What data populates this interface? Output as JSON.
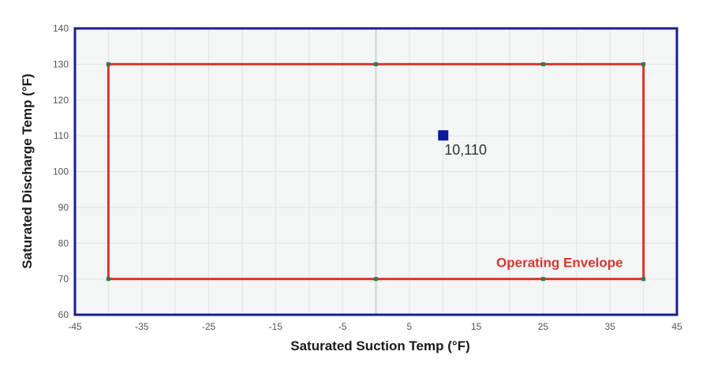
{
  "chart_data": {
    "type": "scatter",
    "xlabel": "Saturated Suction Temp (°F)",
    "ylabel": "Saturated Discharge Temp (°F)",
    "xlim": [
      -45,
      45
    ],
    "ylim": [
      60,
      140
    ],
    "x_ticks": [
      -45,
      -35,
      -25,
      -15,
      -5,
      5,
      15,
      25,
      35,
      45
    ],
    "y_ticks": [
      60,
      70,
      80,
      90,
      100,
      110,
      120,
      130,
      140
    ],
    "x_minor_grid": [
      -40,
      -30,
      -20,
      -10,
      0,
      10,
      20,
      30,
      40
    ],
    "grid": true,
    "plot_background": "#f4f5f5",
    "frame_color": "#1a1f8c",
    "envelope": {
      "name": "Operating Envelope",
      "color": "#d9362b",
      "vertex_color": "#2e7d4f",
      "polygon": [
        [
          -40,
          70
        ],
        [
          -40,
          130
        ],
        [
          40,
          130
        ],
        [
          40,
          70
        ]
      ],
      "vertices": [
        [
          -40,
          130
        ],
        [
          0,
          130
        ],
        [
          25,
          130
        ],
        [
          40,
          130
        ],
        [
          -40,
          70
        ],
        [
          0,
          70
        ],
        [
          25,
          70
        ],
        [
          40,
          70
        ]
      ]
    },
    "point": {
      "x": 10,
      "y": 110,
      "label": "10,110",
      "color": "#0a1a9e"
    }
  }
}
